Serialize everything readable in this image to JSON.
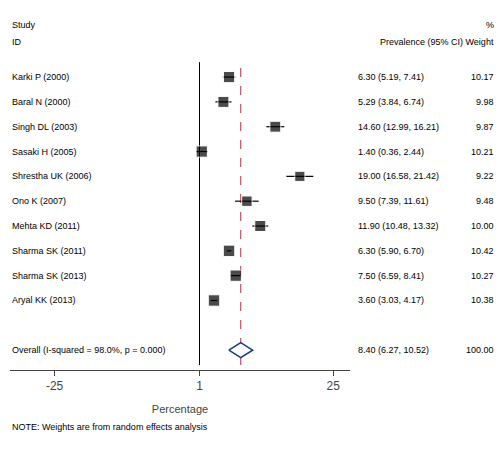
{
  "chart_data": {
    "type": "forest",
    "xlabel": "Percentage",
    "categories": [
      "Karki P (2000)",
      "Baral N (2000)",
      "Singh DL (2003)",
      "Sasaki H (2005)",
      "Shrestha UK (2006)",
      "Ono K (2007)",
      "Mehta KD (2011)",
      "Sharma SK (2011)",
      "Sharma SK (2013)",
      "Aryal KK (2013)"
    ],
    "values": [
      6.3,
      5.29,
      14.6,
      1.4,
      19.0,
      9.5,
      11.9,
      6.3,
      7.5,
      3.6
    ],
    "ci_lo": [
      5.19,
      3.84,
      12.99,
      0.36,
      16.58,
      7.39,
      10.48,
      5.9,
      6.59,
      3.03
    ],
    "ci_hi": [
      7.41,
      6.74,
      16.21,
      2.44,
      21.42,
      11.61,
      13.32,
      6.7,
      8.41,
      4.17
    ],
    "weights": [
      10.17,
      9.98,
      9.87,
      10.21,
      9.22,
      9.48,
      10.0,
      10.42,
      10.27,
      10.38
    ],
    "ci_labels": [
      "6.30 (5.19, 7.41)",
      "5.29 (3.84, 6.74)",
      "14.60 (12.99, 16.21)",
      "1.40 (0.36, 2.44)",
      "19.00 (16.58, 21.42)",
      "9.50 (7.39, 11.61)",
      "11.90 (10.48, 13.32)",
      "6.30 (5.90, 6.70)",
      "7.50 (6.59, 8.41)",
      "3.60 (3.03, 4.17)"
    ],
    "weight_labels": [
      "10.17",
      "9.98",
      "9.87",
      "10.21",
      "9.22",
      "9.48",
      "10.00",
      "10.42",
      "10.27",
      "10.38"
    ],
    "color": "black",
    "overall": {
      "label": "Overall (I-squared = 98.0%, p = 0.000)",
      "value": 8.4,
      "ci_lo": 6.27,
      "ci_hi": 10.52,
      "weight": 100.0,
      "ci_label": "8.40 (6.27, 10.52)",
      "weight_label": "100.00",
      "color": "#1a3a8a"
    },
    "reference_lines": [
      {
        "x": 1,
        "color": "black",
        "line_style": "solid"
      },
      {
        "x": 8.4,
        "color": "#b03040",
        "line_style": "dashed"
      }
    ],
    "header_rows": [
      [
        "Study",
        "%"
      ],
      [
        "ID",
        "Prevalence (95% CI) Weight"
      ]
    ],
    "note": "NOTE: Weights are from random effects analysis",
    "xlim": [
      -33,
      28
    ],
    "xticks": [
      -25,
      1,
      25
    ],
    "grid": false,
    "tick_labels": "x"
  }
}
